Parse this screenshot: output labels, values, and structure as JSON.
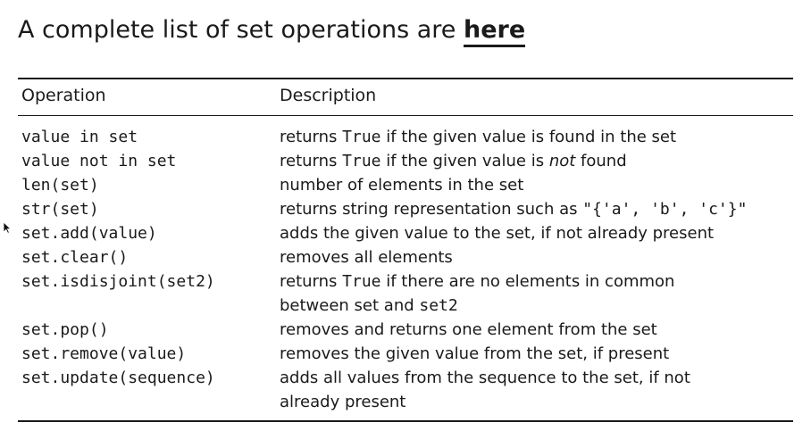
{
  "heading": {
    "text": "A complete list of set operations are ",
    "link": "here"
  },
  "table": {
    "headers": {
      "operation": "Operation",
      "description": "Description"
    },
    "rows": [
      {
        "op": "value in set",
        "desc_parts": [
          "returns ",
          "True",
          " if the given value is found in the set"
        ]
      },
      {
        "op": "value not in set",
        "desc_parts": [
          "returns ",
          "True",
          " if the given value is ",
          "not",
          " found"
        ]
      },
      {
        "op": "len(set)",
        "desc_parts": [
          "number of elements in the set"
        ]
      },
      {
        "op": "str(set)",
        "desc_parts": [
          "returns string representation such as ",
          "\"{'a', 'b', 'c'}\""
        ]
      },
      {
        "op": "set.add(value)",
        "desc_parts": [
          "adds the given value to the set, if not already present"
        ]
      },
      {
        "op": "set.clear()",
        "desc_parts": [
          "removes all elements"
        ]
      },
      {
        "op": "set.isdisjoint(set2)",
        "desc_parts": [
          "returns ",
          "True",
          " if there are no elements in common",
          "between set and ",
          "set2"
        ]
      },
      {
        "op": "set.pop()",
        "desc_parts": [
          "removes and returns one element from the set"
        ]
      },
      {
        "op": "set.remove(value)",
        "desc_parts": [
          "removes the given value from the set, if present"
        ]
      },
      {
        "op": "set.update(sequence)",
        "desc_parts": [
          "adds all values from the sequence to the set, if not",
          "already present"
        ]
      }
    ]
  },
  "icons": {
    "cursor": "mouse-pointer-icon"
  }
}
